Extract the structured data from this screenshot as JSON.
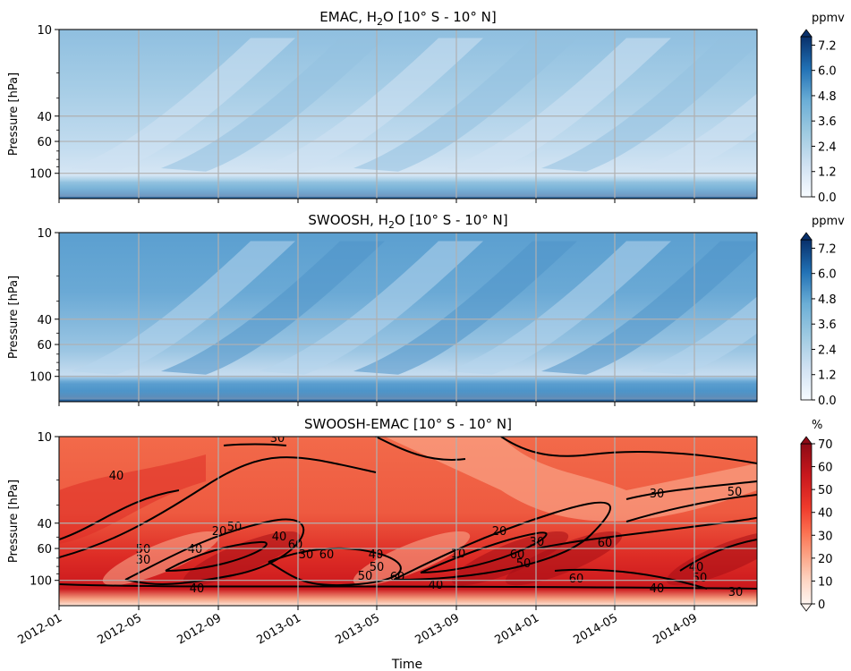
{
  "xlabel": "Time",
  "x_ticks": [
    "2012-01",
    "2012-05",
    "2012-09",
    "2013-01",
    "2013-05",
    "2013-09",
    "2014-01",
    "2014-05",
    "2014-09"
  ],
  "y_ticks": [
    "10",
    "40",
    "60",
    "100"
  ],
  "panels": [
    {
      "title_pre": "EMAC, H",
      "title_sub": "2",
      "title_post": "O [10° S - 10° N]",
      "ylabel": "Pressure [hPa]",
      "colorbar_unit": "ppmv",
      "colorbar_ticks": [
        "7.2",
        "6.0",
        "4.8",
        "3.6",
        "2.4",
        "1.2",
        "0.0"
      ],
      "cmap": "blues"
    },
    {
      "title_pre": "SWOOSH, H",
      "title_sub": "2",
      "title_post": "O [10° S - 10° N]",
      "ylabel": "Pressure [hPa]",
      "colorbar_unit": "ppmv",
      "colorbar_ticks": [
        "7.2",
        "6.0",
        "4.8",
        "3.6",
        "2.4",
        "1.2",
        "0.0"
      ],
      "cmap": "blues"
    },
    {
      "title_pre": "SWOOSH-EMAC [10° S - 10° N]",
      "title_sub": "",
      "title_post": "",
      "ylabel": "Pressure [hPa]",
      "colorbar_unit": "%",
      "colorbar_ticks": [
        "70",
        "60",
        "50",
        "40",
        "30",
        "20",
        "10",
        "0"
      ],
      "cmap": "reds",
      "contour_labels": [
        "30",
        "40",
        "50",
        "60",
        "40",
        "50",
        "40",
        "30",
        "20",
        "30",
        "40",
        "60",
        "50",
        "40",
        "50",
        "60",
        "40",
        "20",
        "10",
        "30",
        "50",
        "60",
        "60",
        "60",
        "30",
        "50",
        "40",
        "40",
        "50",
        "30"
      ]
    }
  ],
  "chart_data": [
    {
      "type": "heatmap",
      "title": "EMAC, H2O [10° S - 10° N]",
      "xlabel": "",
      "ylabel": "Pressure [hPa]",
      "x_range": [
        "2012-01",
        "2014-12"
      ],
      "y_range_hPa": [
        10,
        150
      ],
      "y_scale": "log",
      "colorbar": {
        "label": "ppmv",
        "range": [
          0.0,
          7.2
        ],
        "ticks": [
          0.0,
          1.2,
          2.4,
          3.6,
          4.8,
          6.0,
          7.2
        ]
      },
      "grid": true
    },
    {
      "type": "heatmap",
      "title": "SWOOSH, H2O [10° S - 10° N]",
      "xlabel": "",
      "ylabel": "Pressure [hPa]",
      "x_range": [
        "2012-01",
        "2014-12"
      ],
      "y_range_hPa": [
        10,
        150
      ],
      "y_scale": "log",
      "colorbar": {
        "label": "ppmv",
        "range": [
          0.0,
          7.2
        ],
        "ticks": [
          0.0,
          1.2,
          2.4,
          3.6,
          4.8,
          6.0,
          7.2
        ]
      },
      "grid": true
    },
    {
      "type": "heatmap",
      "title": "SWOOSH-EMAC [10° S - 10° N]",
      "xlabel": "Time",
      "ylabel": "Pressure [hPa]",
      "x_range": [
        "2012-01",
        "2014-12"
      ],
      "y_range_hPa": [
        10,
        150
      ],
      "y_scale": "log",
      "colorbar": {
        "label": "%",
        "range": [
          0,
          70
        ],
        "ticks": [
          0,
          10,
          20,
          30,
          40,
          50,
          60,
          70
        ]
      },
      "contour_levels": [
        10,
        20,
        30,
        40,
        50,
        60
      ],
      "grid": true
    }
  ]
}
